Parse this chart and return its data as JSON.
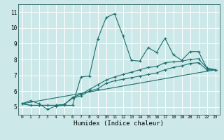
{
  "title": "",
  "xlabel": "Humidex (Indice chaleur)",
  "ylabel": "",
  "xlim": [
    -0.5,
    23.5
  ],
  "ylim": [
    4.5,
    11.5
  ],
  "yticks": [
    5,
    6,
    7,
    8,
    9,
    10,
    11
  ],
  "xticks": [
    0,
    1,
    2,
    3,
    4,
    5,
    6,
    7,
    8,
    9,
    10,
    11,
    12,
    13,
    14,
    15,
    16,
    17,
    18,
    19,
    20,
    21,
    22,
    23
  ],
  "background_color": "#cde8e8",
  "line_color": "#1a6e6e",
  "grid_color": "#ffffff",
  "lines": [
    {
      "x": [
        0,
        1,
        2,
        3,
        4,
        5,
        6,
        7,
        8,
        9,
        10,
        11,
        12,
        13,
        14,
        15,
        16,
        17,
        18,
        19,
        20,
        21,
        22,
        23
      ],
      "y": [
        5.2,
        5.4,
        5.2,
        4.85,
        5.05,
        5.1,
        5.1,
        6.9,
        6.95,
        9.3,
        10.65,
        10.9,
        9.5,
        7.95,
        7.9,
        8.75,
        8.45,
        9.35,
        8.3,
        7.95,
        8.5,
        8.5,
        7.45,
        7.35
      ],
      "marker": true
    },
    {
      "x": [
        0,
        1,
        2,
        3,
        4,
        5,
        6,
        7,
        8,
        9,
        10,
        11,
        12,
        13,
        14,
        15,
        16,
        17,
        18,
        19,
        20,
        21,
        22,
        23
      ],
      "y": [
        5.2,
        5.1,
        5.1,
        5.1,
        5.1,
        5.15,
        5.55,
        5.7,
        6.0,
        6.15,
        6.5,
        6.65,
        6.75,
        6.85,
        6.95,
        7.05,
        7.15,
        7.35,
        7.5,
        7.6,
        7.75,
        7.8,
        7.35,
        7.35
      ],
      "marker": true
    },
    {
      "x": [
        0,
        1,
        2,
        3,
        4,
        5,
        6,
        7,
        8,
        9,
        10,
        11,
        12,
        13,
        14,
        15,
        16,
        17,
        18,
        19,
        20,
        21,
        22,
        23
      ],
      "y": [
        5.2,
        5.1,
        5.1,
        5.1,
        5.1,
        5.15,
        5.6,
        5.8,
        6.1,
        6.4,
        6.7,
        6.9,
        7.05,
        7.2,
        7.35,
        7.5,
        7.55,
        7.8,
        7.85,
        7.9,
        8.0,
        8.05,
        7.45,
        7.35
      ],
      "marker": true
    },
    {
      "x": [
        0,
        23
      ],
      "y": [
        5.2,
        7.35
      ],
      "marker": false
    }
  ]
}
